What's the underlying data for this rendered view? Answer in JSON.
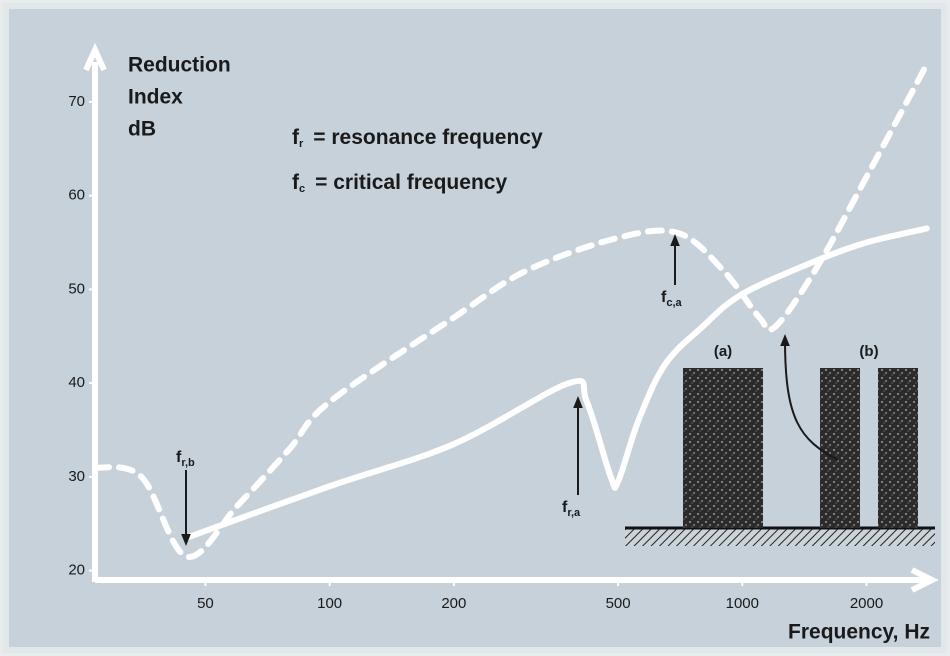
{
  "chart_data": {
    "type": "line",
    "y_label": [
      "Reduction",
      "Index",
      "dB"
    ],
    "x_label": "Frequency, Hz",
    "log_x": true,
    "xlim": [
      27,
      2850
    ],
    "xticks": [
      50,
      100,
      200,
      500,
      1000,
      2000
    ],
    "ylim": [
      19,
      75
    ],
    "yticks": [
      20,
      30,
      40,
      50,
      60,
      70
    ],
    "notes": [
      {
        "symbol": "f",
        "sub": "r",
        "text": "= resonance frequency"
      },
      {
        "symbol": "f",
        "sub": "c",
        "text": "= critical frequency"
      }
    ],
    "markers": [
      {
        "symbol": "f",
        "sub": "r,b"
      },
      {
        "symbol": "f",
        "sub": "r,a"
      },
      {
        "symbol": "f",
        "sub": "c,a"
      }
    ],
    "walls": [
      "(a)",
      "(b)"
    ],
    "series": [
      {
        "name": "(a)",
        "color": "#ffffff",
        "dashed": false,
        "x": [
          45,
          100,
          200,
          380,
          420,
          480,
          500,
          560,
          650,
          800,
          1000,
          1500,
          2000,
          2800
        ],
        "values": [
          23.5,
          29,
          33.5,
          40,
          38,
          30,
          29.5,
          36,
          42,
          46,
          49.5,
          53,
          55,
          56.5
        ]
      },
      {
        "name": "(b)",
        "color": "#ffffff",
        "dashed": true,
        "x": [
          27,
          35,
          45,
          60,
          80,
          100,
          200,
          300,
          500,
          700,
          900,
          1100,
          1200,
          1500,
          2000,
          2800
        ],
        "values": [
          31,
          30,
          21.5,
          27,
          33,
          38,
          47,
          52,
          55.5,
          56,
          52,
          47,
          46,
          52,
          62,
          74
        ]
      }
    ]
  }
}
